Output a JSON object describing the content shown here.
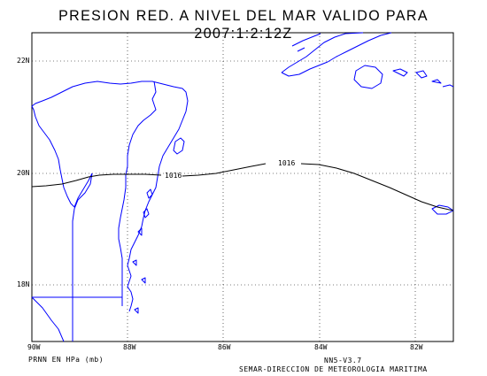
{
  "title": "PRESION RED. A NIVEL DEL MAR VALIDO PARA 2007:1:2:12Z",
  "lat_labels": [
    "22N",
    "20N",
    "18N"
  ],
  "lon_labels": [
    "90W",
    "88W",
    "86W",
    "84W",
    "82W"
  ],
  "isobars": [
    {
      "value": 1016,
      "labels": [
        "1016",
        "1016"
      ]
    }
  ],
  "footer": {
    "variable": "PRNN EN HPa (mb)",
    "version": "NN5-V3.7",
    "source": "SEMAR-DIRECCION DE METEOROLOGIA MARITIMA"
  },
  "colors": {
    "coastline": "#0000ff",
    "isobar": "#000000",
    "grid": "#000000",
    "frame": "#000000",
    "background": "#ffffff"
  },
  "map_extent": {
    "lon_min": -90,
    "lon_max": -81.2,
    "lat_min": 17,
    "lat_max": 22.6
  }
}
